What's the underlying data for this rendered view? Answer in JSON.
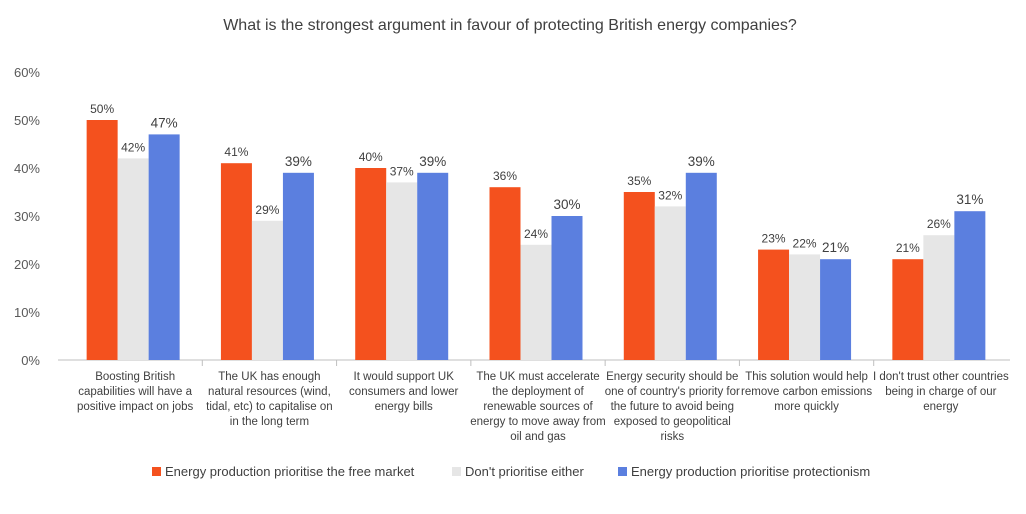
{
  "chart_data": {
    "type": "bar",
    "title": "What is the strongest argument in favour of protecting British energy companies?",
    "categories": [
      "Boosting British capabilities will have a positive impact on jobs",
      "The UK has enough natural resources (wind, tidal, etc) to capitalise on in the long term",
      "It would support UK consumers and lower energy bills",
      "The UK must accelerate the deployment of renewable sources of energy to move away from oil and gas",
      "Energy security should be one of country's priority for the future to avoid being exposed to geopolitical risks",
      "This solution would help remove carbon emissions more quickly",
      "I don't trust other countries being in charge of our energy"
    ],
    "category_lines": [
      [
        "Boosting British",
        "capabilities will have a",
        "positive impact on jobs"
      ],
      [
        "The UK has enough",
        "natural resources (wind,",
        "tidal, etc) to capitalise on",
        "in the long term"
      ],
      [
        "It would support UK",
        "consumers and lower",
        "energy bills"
      ],
      [
        "The UK must accelerate",
        "the deployment of",
        "renewable sources of",
        "energy to move away from",
        "oil and gas"
      ],
      [
        "Energy security should be",
        "one of country's priority for",
        "the future to avoid being",
        "exposed to geopolitical",
        "risks"
      ],
      [
        "This solution would help",
        "remove carbon emissions",
        "more quickly"
      ],
      [
        "I don't trust other countries",
        "being in charge of our",
        "energy"
      ]
    ],
    "series": [
      {
        "name": "Energy production prioritise the free market",
        "color": "#f4511e",
        "values": [
          50,
          41,
          40,
          36,
          35,
          23,
          21
        ],
        "labels": [
          "50%",
          "41%",
          "40%",
          "36%",
          "35%",
          "23%",
          "21%"
        ]
      },
      {
        "name": "Don't prioritise either",
        "color": "#e6e6e6",
        "values": [
          42,
          29,
          37,
          24,
          32,
          22,
          26
        ],
        "labels": [
          "42%",
          "29%",
          "37%",
          "24%",
          "32%",
          "22%",
          "26%"
        ]
      },
      {
        "name": "Energy production prioritise protectionism",
        "color": "#5b7fdf",
        "values": [
          47,
          39,
          39,
          30,
          39,
          21,
          31
        ],
        "labels": [
          "47%",
          "39%",
          "39%",
          "30%",
          "39%",
          "21%",
          "31%"
        ]
      }
    ],
    "ylim": [
      0,
      60
    ],
    "yticks": [
      "0%",
      "10%",
      "20%",
      "30%",
      "40%",
      "50%",
      "60%"
    ],
    "grid": false,
    "legend": "bottom"
  }
}
